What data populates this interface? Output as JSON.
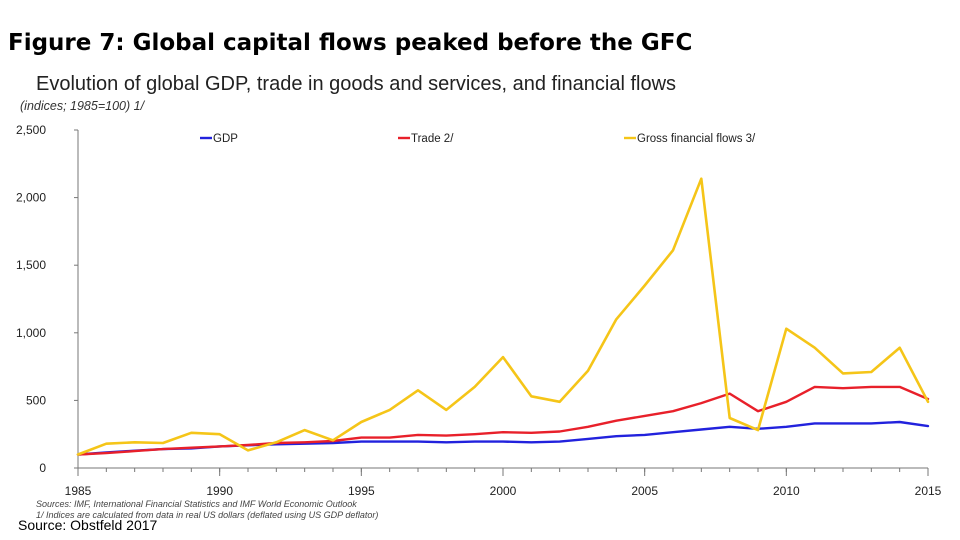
{
  "figure_title": "Figure 7: Global capital flows peaked before the GFC",
  "credit": "Source:  Obstfeld 2017",
  "colors": {
    "gdp": "#2222dd",
    "trade": "#e8202a",
    "flows": "#f5c518"
  },
  "chart_data": {
    "type": "line",
    "title": "Evolution of global GDP, trade in goods and services, and financial flows",
    "units": "(indices; 1985=100) 1/",
    "x": [
      1985,
      1986,
      1987,
      1988,
      1989,
      1990,
      1991,
      1992,
      1993,
      1994,
      1995,
      1996,
      1997,
      1998,
      1999,
      2000,
      2001,
      2002,
      2003,
      2004,
      2005,
      2006,
      2007,
      2008,
      2009,
      2010,
      2011,
      2012,
      2013,
      2014,
      2015
    ],
    "series": [
      {
        "name": "GDP",
        "values": [
          100,
          115,
          128,
          140,
          145,
          160,
          168,
          175,
          180,
          185,
          195,
          195,
          195,
          190,
          195,
          195,
          190,
          195,
          215,
          235,
          245,
          265,
          285,
          305,
          290,
          305,
          330,
          330,
          330,
          340,
          310
        ]
      },
      {
        "name": "Trade 2/",
        "values": [
          100,
          110,
          125,
          140,
          150,
          160,
          170,
          185,
          190,
          200,
          225,
          225,
          245,
          240,
          250,
          265,
          260,
          270,
          305,
          350,
          385,
          420,
          480,
          550,
          420,
          490,
          600,
          590,
          600,
          600,
          510
        ]
      },
      {
        "name": "Gross financial flows 3/",
        "values": [
          100,
          180,
          190,
          185,
          260,
          250,
          130,
          190,
          280,
          205,
          340,
          430,
          575,
          430,
          600,
          820,
          530,
          490,
          720,
          1100,
          1350,
          1610,
          2140,
          370,
          280,
          1030,
          890,
          700,
          710,
          890,
          490
        ]
      }
    ],
    "ylim": [
      0,
      2500
    ],
    "yticks": [
      0,
      500,
      1000,
      1500,
      2000,
      2500
    ],
    "ytick_labels": [
      "0",
      "500",
      "1,000",
      "1,500",
      "2,000",
      "2,500"
    ],
    "xticks": [
      1985,
      1990,
      1995,
      2000,
      2005,
      2010,
      2015
    ],
    "xtick_labels": [
      "1985",
      "1990",
      "1995",
      "2000",
      "2005",
      "2010",
      "2015"
    ],
    "legend_position": "top",
    "footnotes": [
      "Sources: IMF, International Financial Statistics and IMF World Economic Outlook",
      "1/ Indices are calculated from data in real US dollars (deflated using US GDP deflator)"
    ]
  }
}
